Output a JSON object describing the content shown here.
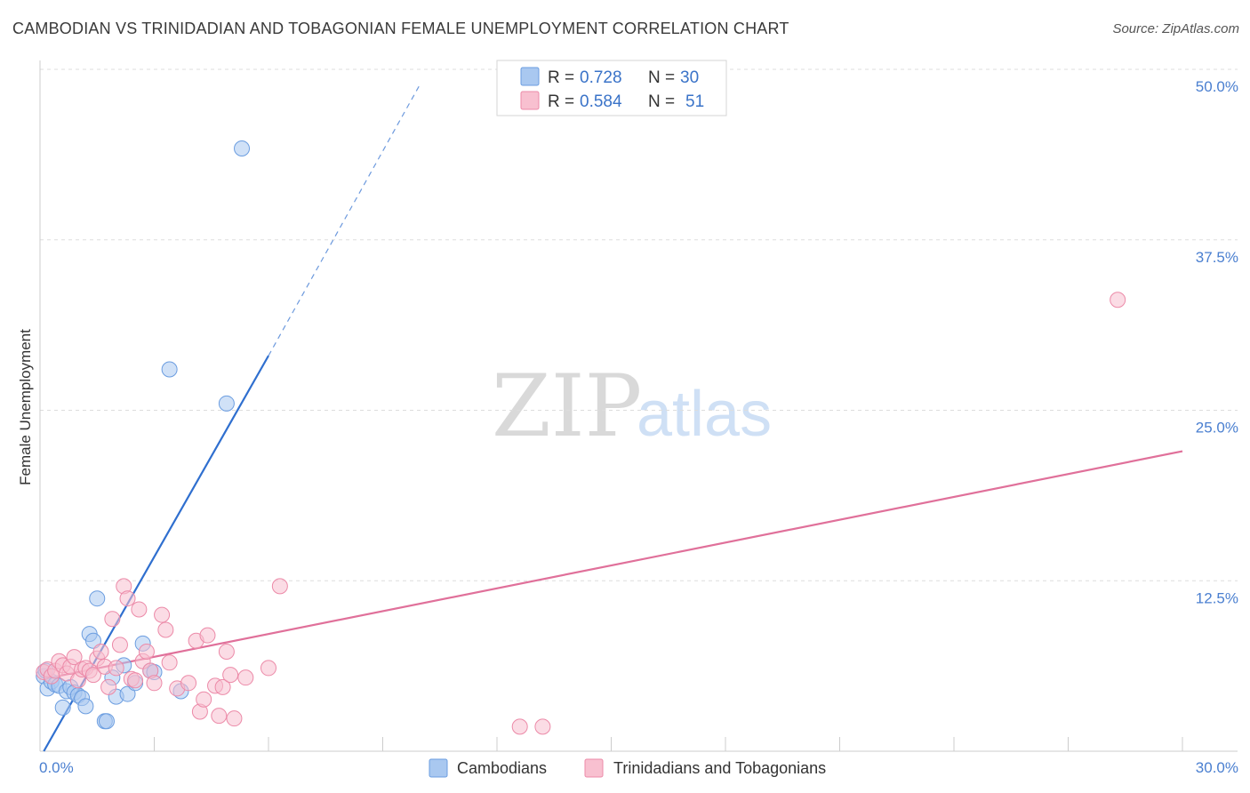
{
  "header": {
    "title": "CAMBODIAN VS TRINIDADIAN AND TOBAGONIAN FEMALE UNEMPLOYMENT CORRELATION CHART",
    "source": "Source: ZipAtlas.com"
  },
  "watermark": {
    "zip": "ZIP",
    "atlas": "atlas"
  },
  "legend": {
    "r_label": "R =",
    "n_label": "N =",
    "entries": [
      {
        "r": "0.728",
        "n": "30",
        "color": "#a9c8f0",
        "stroke": "#6b9de0"
      },
      {
        "r": "0.584",
        "n": "51",
        "color": "#f8c0d0",
        "stroke": "#ec8aa8"
      }
    ]
  },
  "bottom_legend": [
    {
      "label": "Cambodians",
      "color": "#a9c8f0",
      "stroke": "#6b9de0"
    },
    {
      "label": "Trinidadians and Tobagonians",
      "color": "#f8c0d0",
      "stroke": "#ec8aa8"
    }
  ],
  "chart_data": {
    "type": "scatter",
    "title": "CAMBODIAN VS TRINIDADIAN AND TOBAGONIAN FEMALE UNEMPLOYMENT CORRELATION CHART",
    "xlabel": "",
    "ylabel": "Female Unemployment",
    "xlim": [
      0,
      30
    ],
    "ylim": [
      0,
      50
    ],
    "x_tick_labels": [
      {
        "value": 0,
        "label": "0.0%"
      },
      {
        "value": 30,
        "label": "30.0%"
      }
    ],
    "y_tick_labels": [
      {
        "value": 12.5,
        "label": "12.5%"
      },
      {
        "value": 25,
        "label": "25.0%"
      },
      {
        "value": 37.5,
        "label": "37.5%"
      },
      {
        "value": 50,
        "label": "50.0%"
      }
    ],
    "grid": true,
    "series": [
      {
        "name": "Cambodians",
        "color": "#a9c8f0",
        "stroke": "#6b9de0",
        "line_color": "#2f6fcf",
        "trend": {
          "x0": 0.1,
          "y0": 0,
          "x1": 6.0,
          "y1": 29.0,
          "dash_to_x": 10.0,
          "dash_to_y": 49.0
        },
        "points": [
          [
            0.1,
            5.5
          ],
          [
            0.2,
            4.6
          ],
          [
            0.3,
            5.1
          ],
          [
            0.4,
            4.9
          ],
          [
            0.5,
            4.8
          ],
          [
            0.6,
            3.2
          ],
          [
            0.7,
            4.4
          ],
          [
            0.8,
            4.7
          ],
          [
            0.9,
            4.3
          ],
          [
            1.0,
            4.1
          ],
          [
            1.1,
            3.9
          ],
          [
            1.2,
            3.3
          ],
          [
            1.3,
            8.6
          ],
          [
            1.4,
            8.1
          ],
          [
            1.5,
            11.2
          ],
          [
            1.7,
            2.2
          ],
          [
            1.75,
            2.2
          ],
          [
            1.9,
            5.4
          ],
          [
            2.0,
            4.0
          ],
          [
            2.2,
            6.3
          ],
          [
            2.3,
            4.2
          ],
          [
            2.5,
            5.0
          ],
          [
            2.7,
            7.9
          ],
          [
            2.9,
            5.9
          ],
          [
            3.0,
            5.8
          ],
          [
            3.4,
            28.0
          ],
          [
            3.7,
            4.4
          ],
          [
            4.9,
            25.5
          ],
          [
            5.3,
            44.2
          ],
          [
            0.15,
            5.9
          ]
        ]
      },
      {
        "name": "Trinidadians and Tobagonians",
        "color": "#f8c0d0",
        "stroke": "#ec8aa8",
        "line_color": "#e0709a",
        "trend": {
          "x0": 0.1,
          "y0": 5.3,
          "x1": 30.0,
          "y1": 22.0
        },
        "points": [
          [
            0.1,
            5.8
          ],
          [
            0.2,
            6.0
          ],
          [
            0.3,
            5.5
          ],
          [
            0.4,
            5.9
          ],
          [
            0.5,
            6.6
          ],
          [
            0.6,
            6.3
          ],
          [
            0.7,
            5.7
          ],
          [
            0.8,
            6.2
          ],
          [
            0.9,
            6.9
          ],
          [
            1.0,
            5.2
          ],
          [
            1.1,
            6.0
          ],
          [
            1.2,
            6.1
          ],
          [
            1.3,
            5.9
          ],
          [
            1.4,
            5.6
          ],
          [
            1.5,
            6.8
          ],
          [
            1.6,
            7.3
          ],
          [
            1.7,
            6.2
          ],
          [
            1.8,
            4.7
          ],
          [
            1.9,
            9.7
          ],
          [
            2.0,
            6.1
          ],
          [
            2.1,
            7.8
          ],
          [
            2.2,
            12.1
          ],
          [
            2.3,
            11.2
          ],
          [
            2.4,
            5.3
          ],
          [
            2.5,
            5.2
          ],
          [
            2.6,
            10.4
          ],
          [
            2.7,
            6.6
          ],
          [
            2.8,
            7.3
          ],
          [
            2.9,
            5.9
          ],
          [
            3.0,
            5.0
          ],
          [
            3.2,
            10.0
          ],
          [
            3.3,
            8.9
          ],
          [
            3.4,
            6.5
          ],
          [
            3.6,
            4.6
          ],
          [
            3.9,
            5.0
          ],
          [
            4.1,
            8.1
          ],
          [
            4.2,
            2.9
          ],
          [
            4.3,
            3.8
          ],
          [
            4.4,
            8.5
          ],
          [
            4.6,
            4.8
          ],
          [
            4.7,
            2.6
          ],
          [
            4.8,
            4.7
          ],
          [
            4.9,
            7.3
          ],
          [
            5.0,
            5.6
          ],
          [
            5.1,
            2.4
          ],
          [
            5.4,
            5.4
          ],
          [
            6.0,
            6.1
          ],
          [
            6.3,
            12.1
          ],
          [
            12.6,
            1.8
          ],
          [
            13.2,
            1.8
          ],
          [
            28.3,
            33.1
          ]
        ]
      }
    ]
  }
}
